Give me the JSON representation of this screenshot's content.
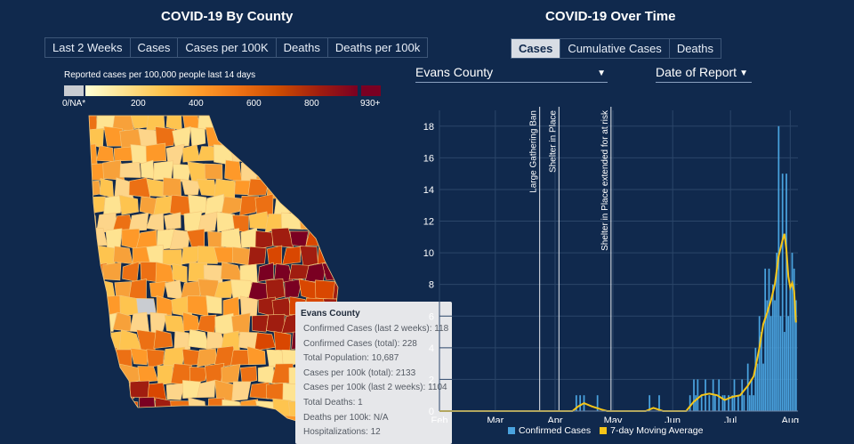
{
  "left": {
    "title": "COVID-19 By County",
    "tabs": [
      {
        "label": "Last 2 Weeks"
      },
      {
        "label": "Cases"
      },
      {
        "label": "Cases per 100K"
      },
      {
        "label": "Deaths"
      },
      {
        "label": "Deaths per 100k"
      }
    ],
    "legend": {
      "title": "Reported cases per 100,000 people last 14 days",
      "ticks": [
        "0/NA*",
        "200",
        "400",
        "600",
        "800",
        "930+"
      ]
    },
    "tooltip": {
      "title": "Evans County",
      "lines": [
        "Confirmed Cases (last 2 weeks): 118",
        "Confirmed Cases (total): 228",
        "Total Population: 10,687",
        "Cases per 100k (total): 2133",
        "Cases per 100k (last 2 weeks): 1104",
        "Total Deaths: 1",
        "Deaths per 100k: N/A",
        "Hospitalizations: 12"
      ]
    }
  },
  "right": {
    "title": "COVID-19 Over Time",
    "tabs": [
      {
        "label": "Cases",
        "active": true
      },
      {
        "label": "Cumulative Cases"
      },
      {
        "label": "Deaths"
      }
    ],
    "county_select": "Evans County",
    "date_select": "Date of Report"
  },
  "colors": {
    "background": "#10294d",
    "bar": "#4aa3df",
    "moving_average": "#f5c518"
  },
  "chart_data": {
    "type": "bar",
    "ylim": [
      0,
      19
    ],
    "yticks": [
      0,
      2,
      4,
      6,
      8,
      10,
      12,
      14,
      16,
      18
    ],
    "xlim": [
      "2020-02-01",
      "2020-08-05"
    ],
    "xticks": [
      {
        "label": "Feb",
        "date": "2020-02-01"
      },
      {
        "label": "Mar",
        "date": "2020-03-01"
      },
      {
        "label": "Apr",
        "date": "2020-04-01"
      },
      {
        "label": "May",
        "date": "2020-05-01"
      },
      {
        "label": "Jun",
        "date": "2020-06-01"
      },
      {
        "label": "Jul",
        "date": "2020-07-01"
      },
      {
        "label": "Aug",
        "date": "2020-08-01"
      }
    ],
    "annotations": [
      {
        "label": "Large Gathering Ban",
        "date": "2020-03-24"
      },
      {
        "label": "Shelter in Place",
        "date": "2020-04-03"
      },
      {
        "label": "Shelter in Place extended for at risk",
        "date": "2020-04-30"
      }
    ],
    "series": [
      {
        "name": "Confirmed Cases",
        "type": "bar",
        "points": [
          [
            "2020-04-12",
            1
          ],
          [
            "2020-04-14",
            1
          ],
          [
            "2020-04-16",
            1
          ],
          [
            "2020-04-23",
            1
          ],
          [
            "2020-05-20",
            1
          ],
          [
            "2020-05-25",
            1
          ],
          [
            "2020-06-10",
            1
          ],
          [
            "2020-06-12",
            2
          ],
          [
            "2020-06-13",
            1
          ],
          [
            "2020-06-14",
            2
          ],
          [
            "2020-06-16",
            1
          ],
          [
            "2020-06-18",
            2
          ],
          [
            "2020-06-20",
            1
          ],
          [
            "2020-06-22",
            2
          ],
          [
            "2020-06-23",
            1
          ],
          [
            "2020-06-25",
            2
          ],
          [
            "2020-06-27",
            1
          ],
          [
            "2020-06-28",
            1
          ],
          [
            "2020-06-30",
            1
          ],
          [
            "2020-07-02",
            1
          ],
          [
            "2020-07-03",
            2
          ],
          [
            "2020-07-05",
            1
          ],
          [
            "2020-07-07",
            2
          ],
          [
            "2020-07-08",
            1
          ],
          [
            "2020-07-10",
            3
          ],
          [
            "2020-07-11",
            1
          ],
          [
            "2020-07-12",
            2
          ],
          [
            "2020-07-13",
            1
          ],
          [
            "2020-07-14",
            4
          ],
          [
            "2020-07-15",
            3
          ],
          [
            "2020-07-16",
            6
          ],
          [
            "2020-07-17",
            5
          ],
          [
            "2020-07-18",
            3
          ],
          [
            "2020-07-19",
            9
          ],
          [
            "2020-07-20",
            7
          ],
          [
            "2020-07-21",
            9
          ],
          [
            "2020-07-22",
            6
          ],
          [
            "2020-07-23",
            8
          ],
          [
            "2020-07-24",
            7
          ],
          [
            "2020-07-25",
            10
          ],
          [
            "2020-07-26",
            18
          ],
          [
            "2020-07-27",
            6
          ],
          [
            "2020-07-28",
            15
          ],
          [
            "2020-07-29",
            5
          ],
          [
            "2020-07-30",
            15
          ],
          [
            "2020-07-31",
            6
          ],
          [
            "2020-08-01",
            8
          ],
          [
            "2020-08-02",
            10
          ],
          [
            "2020-08-03",
            9
          ],
          [
            "2020-08-04",
            7
          ]
        ]
      },
      {
        "name": "7-day Moving Average",
        "type": "line",
        "points": [
          [
            "2020-02-01",
            0
          ],
          [
            "2020-04-10",
            0
          ],
          [
            "2020-04-13",
            0.3
          ],
          [
            "2020-04-16",
            0.5
          ],
          [
            "2020-04-20",
            0.3
          ],
          [
            "2020-04-25",
            0.1
          ],
          [
            "2020-04-28",
            0
          ],
          [
            "2020-05-18",
            0
          ],
          [
            "2020-05-22",
            0.2
          ],
          [
            "2020-05-27",
            0
          ],
          [
            "2020-06-08",
            0
          ],
          [
            "2020-06-12",
            0.6
          ],
          [
            "2020-06-16",
            1.0
          ],
          [
            "2020-06-20",
            1.1
          ],
          [
            "2020-06-24",
            1.0
          ],
          [
            "2020-06-28",
            0.7
          ],
          [
            "2020-07-02",
            0.9
          ],
          [
            "2020-07-06",
            1.0
          ],
          [
            "2020-07-10",
            1.6
          ],
          [
            "2020-07-13",
            2.2
          ],
          [
            "2020-07-16",
            4.0
          ],
          [
            "2020-07-18",
            5.5
          ],
          [
            "2020-07-20",
            6.2
          ],
          [
            "2020-07-22",
            7.0
          ],
          [
            "2020-07-24",
            8.0
          ],
          [
            "2020-07-26",
            9.8
          ],
          [
            "2020-07-28",
            10.8
          ],
          [
            "2020-07-29",
            11.2
          ],
          [
            "2020-07-30",
            10.2
          ],
          [
            "2020-07-31",
            8.5
          ],
          [
            "2020-08-01",
            7.8
          ],
          [
            "2020-08-02",
            8.1
          ],
          [
            "2020-08-03",
            7.6
          ],
          [
            "2020-08-04",
            5.6
          ]
        ]
      }
    ]
  }
}
